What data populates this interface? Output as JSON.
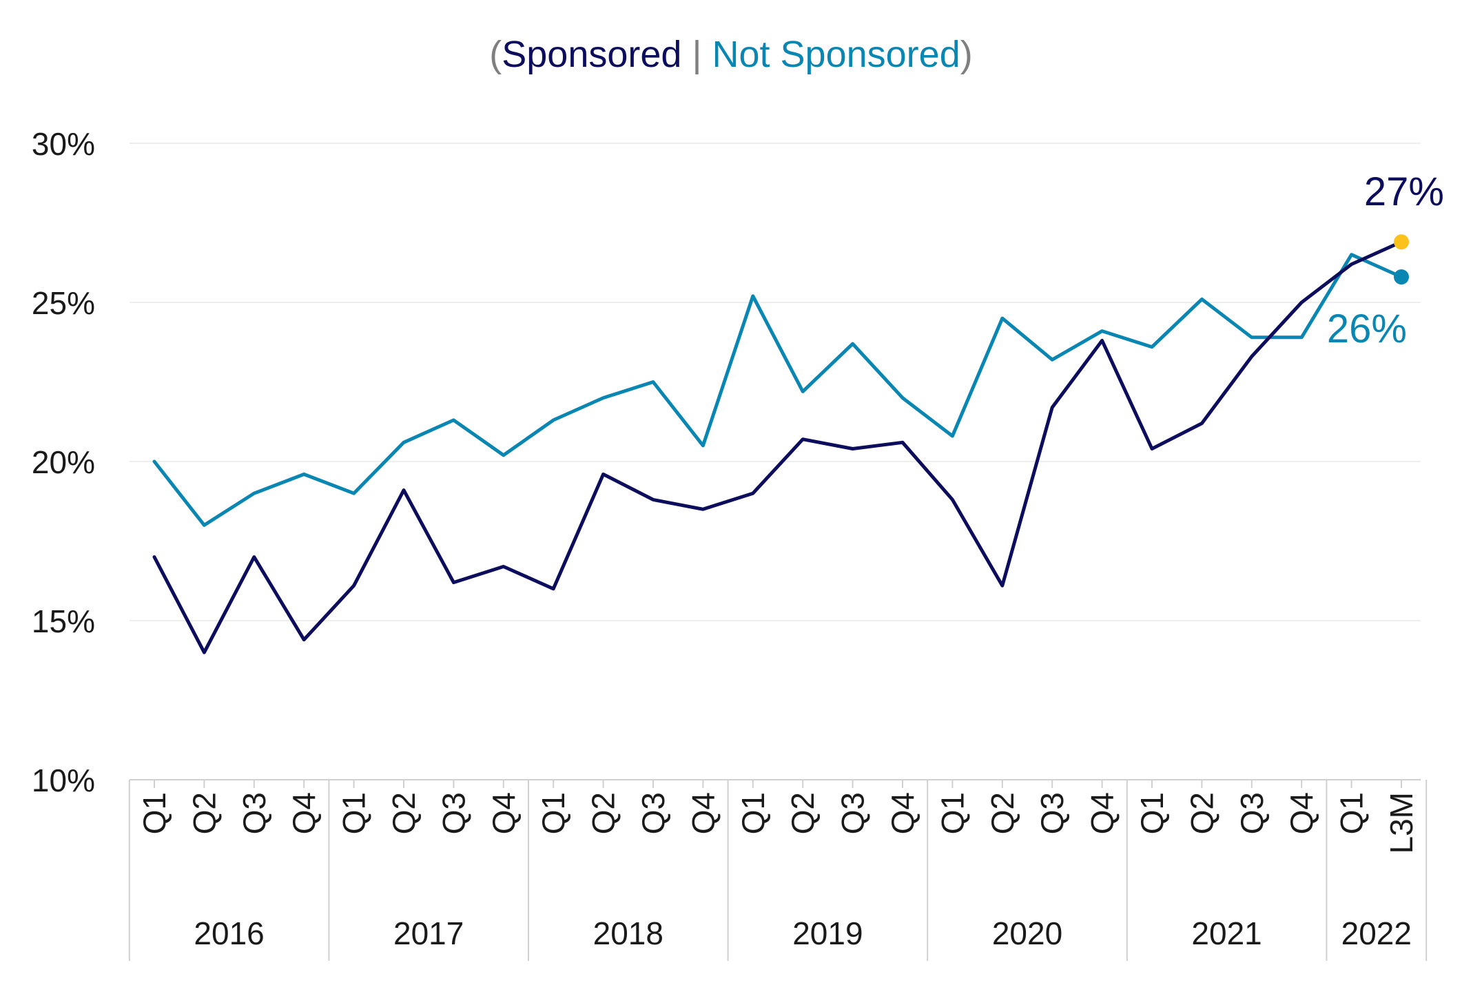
{
  "chart_data": {
    "type": "line",
    "title": {
      "open_paren": "(",
      "sponsored": "Sponsored",
      "separator": " | ",
      "not_sponsored": "Not Sponsored",
      "close_paren": ")"
    },
    "categories": [
      "Q1",
      "Q2",
      "Q3",
      "Q4",
      "Q1",
      "Q2",
      "Q3",
      "Q4",
      "Q1",
      "Q2",
      "Q3",
      "Q4",
      "Q1",
      "Q2",
      "Q3",
      "Q4",
      "Q1",
      "Q2",
      "Q3",
      "Q4",
      "Q1",
      "Q2",
      "Q3",
      "Q4",
      "Q1",
      "L3M"
    ],
    "groups": [
      {
        "label": "2016",
        "count": 4
      },
      {
        "label": "2017",
        "count": 4
      },
      {
        "label": "2018",
        "count": 4
      },
      {
        "label": "2019",
        "count": 4
      },
      {
        "label": "2020",
        "count": 4
      },
      {
        "label": "2021",
        "count": 4
      },
      {
        "label": "2022",
        "count": 2
      }
    ],
    "series": [
      {
        "name": "Sponsored",
        "color": "#0d0d5e",
        "values": [
          17.0,
          14.0,
          17.0,
          14.4,
          16.1,
          19.1,
          16.2,
          16.7,
          16.0,
          19.6,
          18.8,
          18.5,
          19.0,
          20.7,
          20.4,
          20.6,
          18.8,
          16.1,
          21.7,
          23.8,
          20.4,
          21.2,
          23.3,
          25.0,
          26.2,
          26.9
        ],
        "end_label": "27%",
        "end_marker_color": "#fcc21b"
      },
      {
        "name": "Not Sponsored",
        "color": "#0a86b3",
        "values": [
          20.0,
          18.0,
          19.0,
          19.6,
          19.0,
          20.6,
          21.3,
          20.2,
          21.3,
          22.0,
          22.5,
          20.5,
          25.2,
          22.2,
          23.7,
          22.0,
          20.8,
          24.5,
          23.2,
          24.1,
          23.6,
          25.1,
          23.9,
          23.9,
          26.5,
          25.8
        ],
        "end_label": "26%",
        "end_marker_color": "#0a86b3"
      }
    ],
    "yticks": [
      "10%",
      "15%",
      "20%",
      "25%",
      "30%"
    ],
    "ytick_values": [
      10,
      15,
      20,
      25,
      30
    ],
    "ylim": [
      10,
      30
    ],
    "grid": true,
    "legend": "title",
    "colors": {
      "title_paren": "#7f7f7f",
      "axis_text": "#1a1a1a",
      "grid": "#eeeeee",
      "axis_line": "#d0d0d0"
    }
  }
}
